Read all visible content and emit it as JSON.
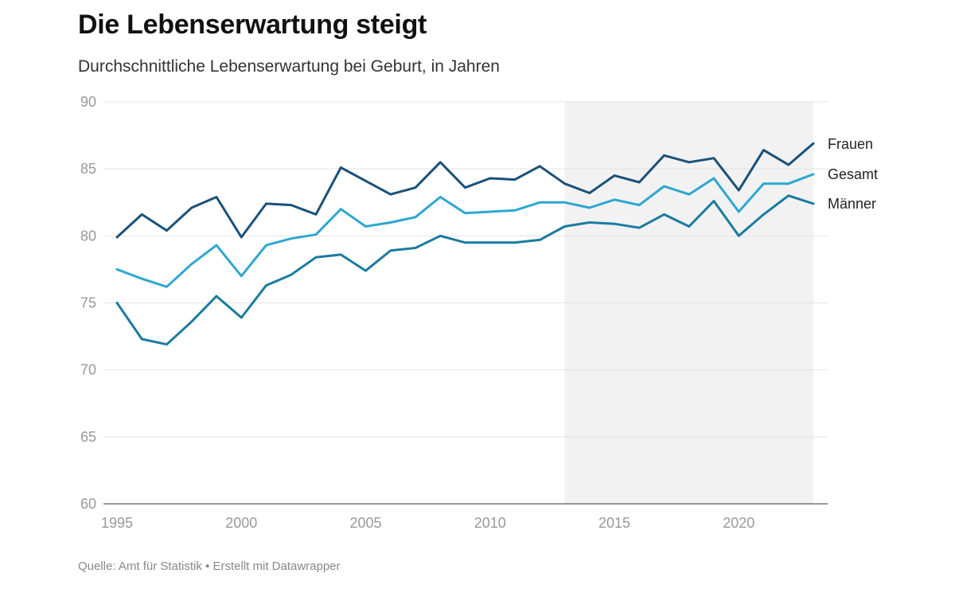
{
  "header": {
    "title": "Die Lebenserwartung steigt",
    "subtitle": "Durchschnittliche Lebenserwartung bei Geburt, in Jahren"
  },
  "footer": {
    "source": "Quelle: Amt für Statistik • Erstellt mit Datawrapper"
  },
  "chart_data": {
    "type": "line",
    "title": "Die Lebenserwartung steigt",
    "subtitle": "Durchschnittliche Lebenserwartung bei Geburt, in Jahren",
    "xlabel": "",
    "ylabel": "",
    "xlim": [
      1995,
      2023
    ],
    "ylim": [
      60,
      90
    ],
    "x_ticks": [
      1995,
      2000,
      2005,
      2010,
      2015,
      2020
    ],
    "y_ticks": [
      60,
      65,
      70,
      75,
      80,
      85,
      90
    ],
    "grid": "horizontal",
    "highlight_range": [
      2013,
      2023
    ],
    "highlight_color": "#f2f2f2",
    "x": [
      1995,
      1996,
      1997,
      1998,
      1999,
      2000,
      2001,
      2002,
      2003,
      2004,
      2005,
      2006,
      2007,
      2008,
      2009,
      2010,
      2011,
      2012,
      2013,
      2014,
      2015,
      2016,
      2017,
      2018,
      2019,
      2020,
      2021,
      2022,
      2023
    ],
    "series": [
      {
        "name": "Frauen",
        "color": "#1b5179",
        "values": [
          79.9,
          81.6,
          80.4,
          82.1,
          82.9,
          79.9,
          82.4,
          82.3,
          81.6,
          85.1,
          84.1,
          83.1,
          83.6,
          85.5,
          83.6,
          84.3,
          84.2,
          85.2,
          83.9,
          83.2,
          84.5,
          84.0,
          86.0,
          85.5,
          85.8,
          83.4,
          86.4,
          85.3,
          86.9
        ]
      },
      {
        "name": "Gesamt",
        "color": "#2ea7d0",
        "values": [
          77.5,
          76.8,
          76.2,
          77.9,
          79.3,
          77.0,
          79.3,
          79.8,
          80.1,
          82.0,
          80.7,
          81.0,
          81.4,
          82.9,
          81.7,
          81.8,
          81.9,
          82.5,
          82.5,
          82.1,
          82.7,
          82.3,
          83.7,
          83.1,
          84.3,
          81.8,
          83.9,
          83.9,
          84.6
        ]
      },
      {
        "name": "Männer",
        "color": "#1a7ba0",
        "values": [
          75.0,
          72.3,
          71.9,
          73.6,
          75.5,
          73.9,
          76.3,
          77.1,
          78.4,
          78.6,
          77.4,
          78.9,
          79.1,
          80.0,
          79.5,
          79.5,
          79.5,
          79.7,
          80.7,
          81.0,
          80.9,
          80.6,
          81.6,
          80.7,
          82.6,
          80.0,
          81.6,
          83.0,
          82.4
        ]
      }
    ]
  }
}
